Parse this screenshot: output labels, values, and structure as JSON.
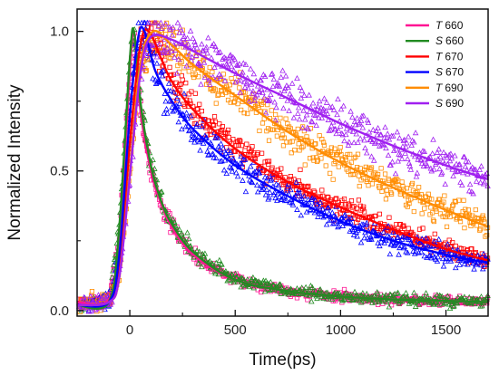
{
  "chart_data": {
    "type": "scatter",
    "xlabel": "Time(ps)",
    "ylabel": "Normalized Intensity",
    "xlim": [
      -250,
      1700
    ],
    "ylim": [
      -0.02,
      1.08
    ],
    "x_ticks": [
      0,
      500,
      1000,
      1500
    ],
    "x_tick_labels": [
      "0",
      "500",
      "1000",
      "1500"
    ],
    "y_ticks": [
      0.0,
      0.5,
      1.0
    ],
    "y_tick_labels": [
      "0.0",
      "0.5",
      "1.0"
    ],
    "grid": false,
    "legend_position": "top-right",
    "series": [
      {
        "name": "660",
        "prefix": "T",
        "color": "#ff1493",
        "marker": "square",
        "fit": {
          "x": [
            -250,
            -100,
            -50,
            0,
            20,
            50,
            100,
            150,
            200,
            300,
            500,
            750,
            1000,
            1250,
            1500,
            1700
          ],
          "y": [
            0.03,
            0.04,
            0.25,
            0.85,
            1.0,
            0.72,
            0.5,
            0.38,
            0.3,
            0.2,
            0.11,
            0.07,
            0.05,
            0.04,
            0.035,
            0.03
          ]
        }
      },
      {
        "name": "660",
        "prefix": "S",
        "color": "#228b22",
        "marker": "triangle",
        "fit": {
          "x": [
            -250,
            -100,
            -50,
            0,
            20,
            50,
            100,
            150,
            200,
            300,
            500,
            750,
            1000,
            1250,
            1500,
            1700
          ],
          "y": [
            0.02,
            0.03,
            0.3,
            0.9,
            1.0,
            0.75,
            0.52,
            0.39,
            0.31,
            0.21,
            0.11,
            0.07,
            0.05,
            0.04,
            0.035,
            0.03
          ]
        }
      },
      {
        "name": "670",
        "prefix": "T",
        "color": "#ff0000",
        "marker": "square",
        "fit": {
          "x": [
            -250,
            -100,
            -50,
            0,
            50,
            90,
            150,
            200,
            300,
            500,
            750,
            1000,
            1250,
            1500,
            1700
          ],
          "y": [
            0.02,
            0.03,
            0.15,
            0.6,
            0.95,
            1.0,
            0.9,
            0.82,
            0.72,
            0.58,
            0.46,
            0.37,
            0.29,
            0.22,
            0.18
          ]
        }
      },
      {
        "name": "670",
        "prefix": "S",
        "color": "#0000ff",
        "marker": "triangle",
        "fit": {
          "x": [
            -250,
            -100,
            -50,
            0,
            40,
            70,
            120,
            200,
            300,
            500,
            750,
            1000,
            1250,
            1500,
            1700
          ],
          "y": [
            0.02,
            0.03,
            0.2,
            0.7,
            0.98,
            1.0,
            0.86,
            0.75,
            0.65,
            0.52,
            0.41,
            0.32,
            0.25,
            0.2,
            0.17
          ]
        }
      },
      {
        "name": "690",
        "prefix": "T",
        "color": "#ff8c00",
        "marker": "square",
        "fit": {
          "x": [
            -250,
            -100,
            -50,
            0,
            50,
            110,
            200,
            300,
            500,
            750,
            1000,
            1250,
            1500,
            1700
          ],
          "y": [
            0.02,
            0.03,
            0.12,
            0.5,
            0.88,
            1.0,
            0.95,
            0.88,
            0.77,
            0.64,
            0.53,
            0.44,
            0.36,
            0.3
          ]
        }
      },
      {
        "name": "690",
        "prefix": "S",
        "color": "#a020f0",
        "marker": "triangle",
        "fit": {
          "x": [
            -250,
            -100,
            -50,
            0,
            50,
            100,
            200,
            300,
            500,
            750,
            1000,
            1250,
            1500,
            1700
          ],
          "y": [
            0.02,
            0.03,
            0.12,
            0.48,
            0.85,
            0.98,
            0.97,
            0.93,
            0.85,
            0.76,
            0.67,
            0.59,
            0.52,
            0.47
          ]
        }
      }
    ]
  }
}
